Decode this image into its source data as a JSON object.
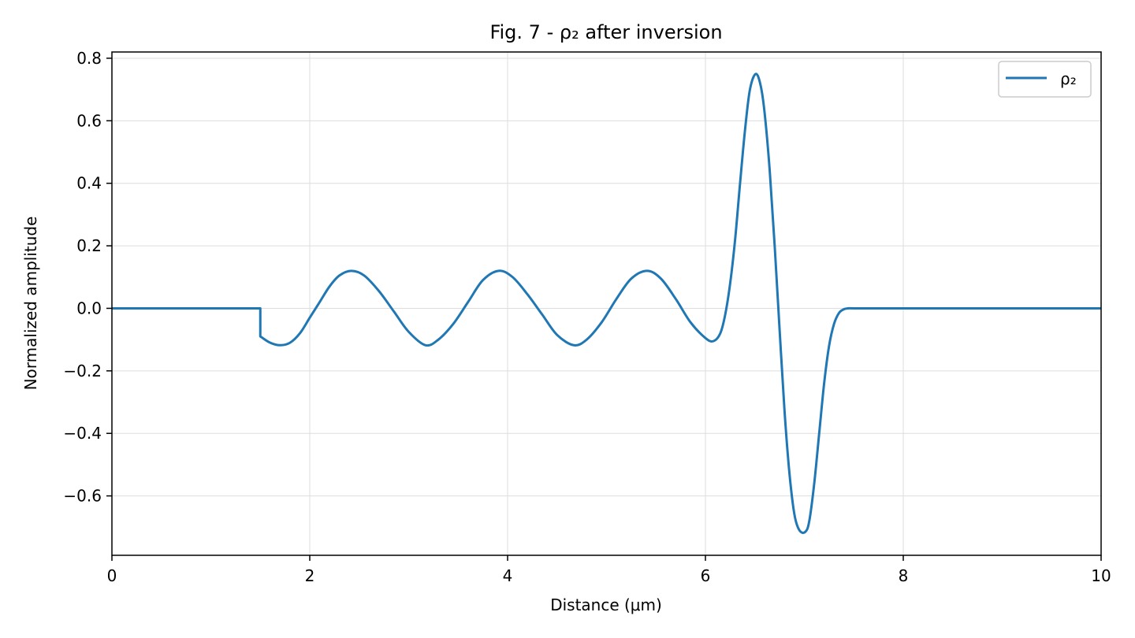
{
  "chart_data": {
    "type": "line",
    "title": "Fig. 7 - ρ₂ after inversion",
    "xlabel": "Distance (μm)",
    "ylabel": "Normalized amplitude",
    "xlim": [
      0,
      10
    ],
    "ylim": [
      -0.79,
      0.82
    ],
    "xticks": [
      0,
      2,
      4,
      6,
      8,
      10
    ],
    "xtick_labels": [
      "0",
      "2",
      "4",
      "6",
      "8",
      "10"
    ],
    "yticks": [
      -0.6,
      -0.4,
      -0.2,
      0.0,
      0.2,
      0.4,
      0.6,
      0.8
    ],
    "ytick_labels": [
      "−0.6",
      "−0.4",
      "−0.2",
      "0.0",
      "0.2",
      "0.4",
      "0.6",
      "0.8"
    ],
    "grid": true,
    "legend_position": "top-right",
    "series": [
      {
        "name": "ρ₂",
        "color": "#1f77b4",
        "x": [
          0,
          1.5,
          1.5,
          1.6,
          1.7,
          1.8,
          1.9,
          2.0,
          2.1,
          2.2,
          2.3,
          2.42,
          2.55,
          2.7,
          2.85,
          3.0,
          3.17,
          3.3,
          3.45,
          3.6,
          3.75,
          3.91,
          4.05,
          4.2,
          4.35,
          4.5,
          4.67,
          4.8,
          4.95,
          5.1,
          5.25,
          5.41,
          5.55,
          5.7,
          5.85,
          6.0,
          6.08,
          6.15,
          6.2,
          6.25,
          6.3,
          6.35,
          6.4,
          6.45,
          6.51,
          6.56,
          6.6,
          6.65,
          6.7,
          6.75,
          6.8,
          6.85,
          6.9,
          6.95,
          7.01,
          7.05,
          7.1,
          7.15,
          7.2,
          7.25,
          7.3,
          7.35,
          7.4,
          7.45,
          7.5,
          8.0,
          9.0,
          10.0
        ],
        "y": [
          0,
          0,
          -0.09,
          -0.11,
          -0.118,
          -0.11,
          -0.08,
          -0.03,
          0.02,
          0.07,
          0.105,
          0.12,
          0.105,
          0.055,
          -0.01,
          -0.075,
          -0.118,
          -0.1,
          -0.05,
          0.02,
          0.09,
          0.12,
          0.1,
          0.045,
          -0.02,
          -0.085,
          -0.118,
          -0.1,
          -0.045,
          0.03,
          0.095,
          0.12,
          0.095,
          0.03,
          -0.045,
          -0.095,
          -0.105,
          -0.08,
          -0.02,
          0.08,
          0.22,
          0.4,
          0.57,
          0.7,
          0.75,
          0.71,
          0.62,
          0.44,
          0.2,
          -0.07,
          -0.33,
          -0.53,
          -0.66,
          -0.71,
          -0.715,
          -0.68,
          -0.56,
          -0.4,
          -0.24,
          -0.12,
          -0.05,
          -0.015,
          -0.003,
          0,
          0,
          0,
          0,
          0
        ]
      }
    ]
  }
}
